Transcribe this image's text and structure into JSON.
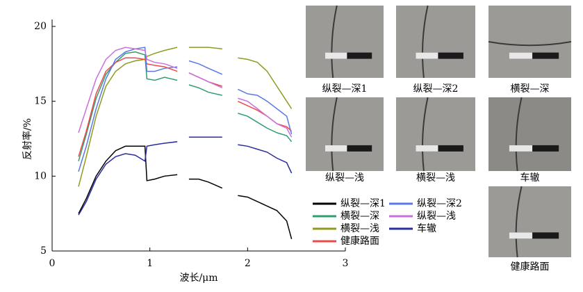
{
  "chart_data": {
    "type": "line",
    "ylabel": "反射率/%",
    "xlabel": "波长/μm",
    "xlim": [
      0,
      3
    ],
    "xticks": [
      0,
      1,
      2,
      3
    ],
    "ylim": [
      5,
      20
    ],
    "yticks": [
      5,
      10,
      15,
      20
    ],
    "x": [
      0.27,
      0.35,
      0.45,
      0.55,
      0.65,
      0.75,
      0.85,
      0.95,
      0.97,
      1.05,
      1.15,
      1.28,
      1.34,
      1.4,
      1.5,
      1.6,
      1.74,
      1.82,
      1.9,
      2.0,
      2.1,
      2.2,
      2.3,
      2.4,
      2.45
    ],
    "series": [
      {
        "name": "纵裂—深1",
        "color": "#000000",
        "values": [
          7.5,
          8.5,
          10,
          11,
          11.7,
          12,
          12,
          12,
          9.7,
          9.8,
          10,
          10.1,
          null,
          9.8,
          9.8,
          9.6,
          9.2,
          null,
          8.7,
          8.6,
          8.3,
          8,
          7.7,
          7,
          5.8
        ]
      },
      {
        "name": "横裂—深",
        "color": "#2e9e6f",
        "values": [
          11,
          12.8,
          15.2,
          16.8,
          17.6,
          18.2,
          18.3,
          18.1,
          16.5,
          16.4,
          16.6,
          16.4,
          null,
          16.1,
          15.9,
          15.6,
          15.4,
          null,
          14.2,
          14,
          13.6,
          13.2,
          12.9,
          12.7,
          12.3
        ]
      },
      {
        "name": "横裂—浅",
        "color": "#8f9a1f",
        "values": [
          9.3,
          11.3,
          14,
          16,
          17,
          17.5,
          17.7,
          17.8,
          18,
          18.2,
          18.4,
          18.6,
          null,
          18.6,
          18.6,
          18.6,
          18.5,
          null,
          17.9,
          17.8,
          17.6,
          17,
          16,
          15,
          14.5
        ]
      },
      {
        "name": "健康路面",
        "color": "#f0494b",
        "values": [
          11.3,
          13,
          15.5,
          17,
          17.6,
          17.9,
          17.9,
          17.8,
          17.5,
          17.4,
          17.3,
          17,
          null,
          16.9,
          16.6,
          16.3,
          16,
          null,
          15,
          14.7,
          14.4,
          14,
          13.5,
          13.3,
          13
        ]
      },
      {
        "name": "纵裂—深2",
        "color": "#5a78e6",
        "values": [
          10.3,
          12,
          14.5,
          16.5,
          17.8,
          18.3,
          18.5,
          18.6,
          17,
          17,
          17.2,
          17.3,
          null,
          17.7,
          17.5,
          17.2,
          16.8,
          null,
          15.8,
          15.5,
          15.4,
          15,
          14.5,
          14,
          12.8
        ]
      },
      {
        "name": "纵裂—浅",
        "color": "#c86ee0",
        "values": [
          12.9,
          14.5,
          16.5,
          17.8,
          18.4,
          18.6,
          18.5,
          18.4,
          17.8,
          17.6,
          17.5,
          17.2,
          null,
          16.9,
          16.6,
          16.3,
          15.9,
          null,
          15.2,
          15,
          14.5,
          14,
          13.5,
          13.2,
          12.6
        ]
      },
      {
        "name": "车辙",
        "color": "#2b2ba0",
        "values": [
          7.4,
          8.3,
          9.8,
          10.8,
          11.3,
          11.5,
          11.4,
          11,
          12,
          12.1,
          12.2,
          12.3,
          null,
          12.6,
          12.6,
          12.6,
          12.6,
          null,
          12.1,
          12,
          11.8,
          11.6,
          11.2,
          10.9,
          10.2
        ]
      }
    ]
  },
  "photos": [
    {
      "caption": "纵裂—深1"
    },
    {
      "caption": "纵裂—深2"
    },
    {
      "caption": "横裂—深"
    },
    {
      "caption": "纵裂—浅"
    },
    {
      "caption": "横裂—浅"
    },
    {
      "caption": "车辙"
    },
    {
      "caption": "健康路面"
    }
  ]
}
